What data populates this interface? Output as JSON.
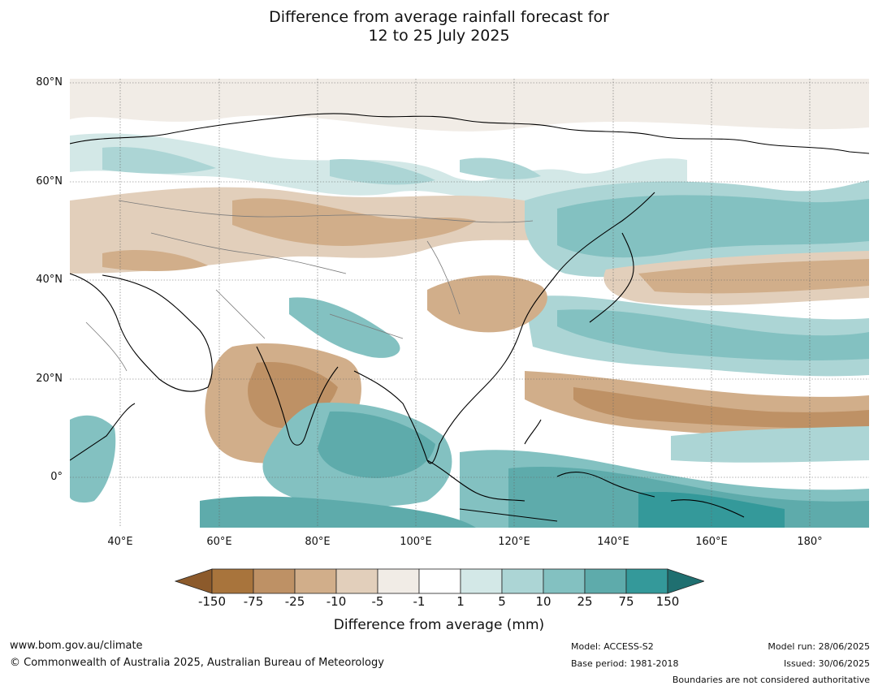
{
  "title_line1": "Difference from average rainfall forecast for",
  "title_line2": "12 to 25 July 2025",
  "map": {
    "lat_labels": [
      "80°N",
      "60°N",
      "40°N",
      "20°N",
      "0°"
    ],
    "lon_labels": [
      "40°E",
      "60°E",
      "80°E",
      "100°E",
      "120°E",
      "140°E",
      "160°E",
      "180°"
    ]
  },
  "colorbar": {
    "title": "Difference from average (mm)",
    "tick_labels": [
      "-150",
      "-75",
      "-25",
      "-10",
      "-5",
      "-1",
      "1",
      "5",
      "10",
      "25",
      "75",
      "150"
    ],
    "colors": [
      "#8c5a2b",
      "#a8743c",
      "#be9165",
      "#d1ae8a",
      "#e2cfbb",
      "#f1ece6",
      "#ffffff",
      "#d3e8e7",
      "#acd5d5",
      "#83c1c1",
      "#5eabab",
      "#34999a",
      "#1f6f70"
    ]
  },
  "footer": {
    "website": "www.bom.gov.au/climate",
    "copyright": "© Commonwealth of Australia 2025, Australian Bureau of Meteorology",
    "model": "Model: ACCESS-S2",
    "base_period": "Base period: 1981-2018",
    "model_run": "Model run: 28/06/2025",
    "issued": "Issued: 30/06/2025",
    "disclaimer": "Boundaries are not considered authoritative"
  }
}
